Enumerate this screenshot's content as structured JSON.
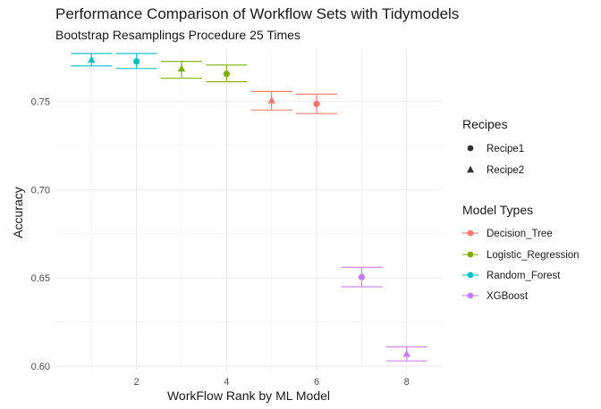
{
  "chart_data": {
    "type": "scatter",
    "title": "Performance Comparison of Workflow Sets with Tidymodels",
    "subtitle": "Bootstrap Resamplings Procedure 25 Times",
    "xlabel": "WorkFlow Rank by ML Model",
    "ylabel": "Accuracy",
    "xlim": [
      0.2,
      8.8
    ],
    "ylim": [
      0.5975,
      0.7795
    ],
    "x_ticks": [
      2,
      4,
      6,
      8
    ],
    "y_ticks": [
      0.6,
      0.65,
      0.7,
      0.75
    ],
    "y_tick_labels": [
      "0.60",
      "0.65",
      "0.70",
      "0.75"
    ],
    "grid": true,
    "legend_position": "right",
    "legends": [
      {
        "title": "Recipes",
        "items": [
          {
            "label": "Recipe1",
            "shape": "circle"
          },
          {
            "label": "Recipe2",
            "shape": "triangle"
          }
        ]
      },
      {
        "title": "Model Types",
        "items": [
          {
            "label": "Decision_Tree",
            "color": "#F8766D"
          },
          {
            "label": "Logistic_Regression",
            "color": "#7CAE00"
          },
          {
            "label": "Random_Forest",
            "color": "#00BFC4"
          },
          {
            "label": "XGBoost",
            "color": "#C77CFF"
          }
        ]
      }
    ],
    "points": [
      {
        "rank": 1,
        "accuracy": 0.7735,
        "lower": 0.77,
        "upper": 0.777,
        "model": "Random_Forest",
        "recipe": "Recipe2"
      },
      {
        "rank": 2,
        "accuracy": 0.7725,
        "lower": 0.7685,
        "upper": 0.777,
        "model": "Random_Forest",
        "recipe": "Recipe1"
      },
      {
        "rank": 3,
        "accuracy": 0.7685,
        "lower": 0.763,
        "upper": 0.7725,
        "model": "Logistic_Regression",
        "recipe": "Recipe2"
      },
      {
        "rank": 4,
        "accuracy": 0.7655,
        "lower": 0.761,
        "upper": 0.7705,
        "model": "Logistic_Regression",
        "recipe": "Recipe1"
      },
      {
        "rank": 5,
        "accuracy": 0.7505,
        "lower": 0.745,
        "upper": 0.7555,
        "model": "Decision_Tree",
        "recipe": "Recipe2"
      },
      {
        "rank": 6,
        "accuracy": 0.7485,
        "lower": 0.743,
        "upper": 0.754,
        "model": "Decision_Tree",
        "recipe": "Recipe1"
      },
      {
        "rank": 7,
        "accuracy": 0.6505,
        "lower": 0.645,
        "upper": 0.656,
        "model": "XGBoost",
        "recipe": "Recipe1"
      },
      {
        "rank": 8,
        "accuracy": 0.607,
        "lower": 0.603,
        "upper": 0.611,
        "model": "XGBoost",
        "recipe": "Recipe2"
      }
    ]
  }
}
